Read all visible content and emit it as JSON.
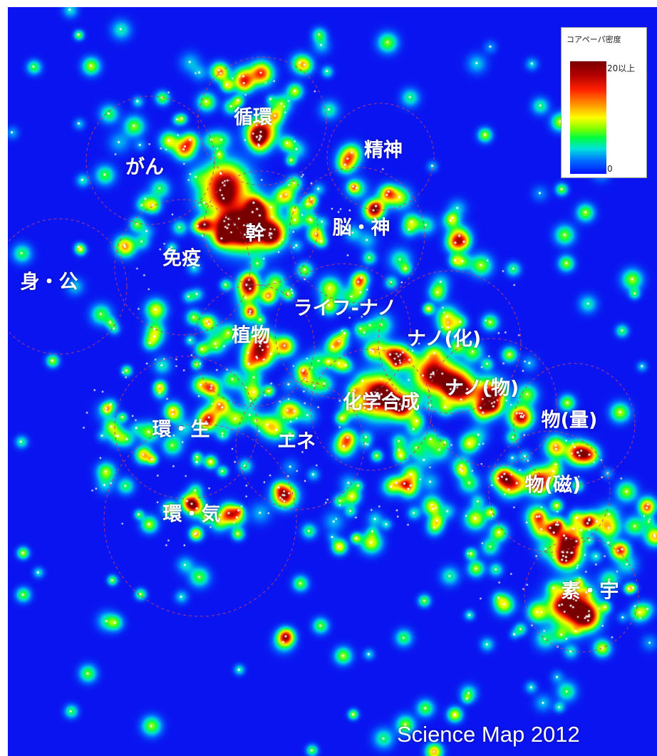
{
  "map": {
    "background_color": "#0a14f0",
    "region_circle_color": "#c04070"
  },
  "legend": {
    "title": "コアペーパ密度",
    "max_label": "20以上",
    "min_label": "0"
  },
  "labels": {
    "junkan": "循環",
    "seishin": "精神",
    "gan": "がん",
    "nou_shin": "脳・神",
    "kan": "幹",
    "meneki": "免疫",
    "shin_kou": "身・公",
    "life_nano": "ライフ-ナノ",
    "nano_ka": "ナノ(化)",
    "shokubutsu": "植物",
    "kagaku_gousei": "化学合成",
    "nano_butsu": "ナノ(物)",
    "kan_sei": "環・生",
    "ene": "エネ",
    "butsu_ryou": "物(量)",
    "butsu_ji": "物(磁)",
    "kan_ki": "環・気",
    "so_u": "素・宇"
  },
  "watermark": "Science Map 2012"
}
